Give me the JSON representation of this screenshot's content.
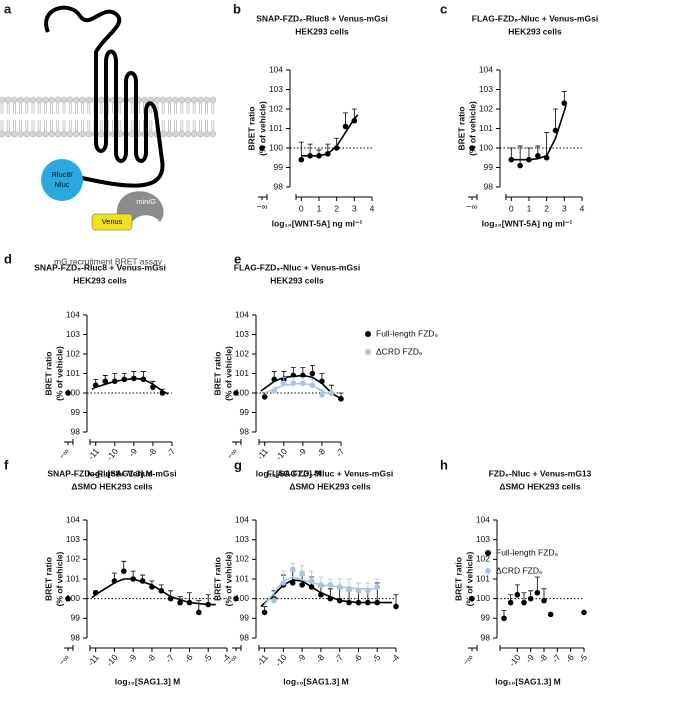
{
  "schematic": {
    "panel_label": "a",
    "luciferase_label_1": "Rluc8/",
    "luciferase_label_2": "Nluc",
    "venus_label": "Venus",
    "minig_label": "miniG",
    "caption": "mG recruitment BRET assay"
  },
  "chart_data": [
    {
      "type": "scatter",
      "panel_label": "b",
      "title": "SNAP-FZD₆-Rluc8 + Venus-mGsi",
      "subtitle": "HEK293 cells",
      "ylabel": "BRET ratio",
      "ylabel2": "(% of vehicle)",
      "xlabel": "log₁₀[WNT-5A] ng ml⁻¹",
      "x_break_label": "−∞",
      "xlim": [
        -0.3,
        4
      ],
      "xticks": [
        0,
        1,
        2,
        3,
        4
      ],
      "ylim": [
        98,
        104
      ],
      "yticks": [
        98,
        99,
        100,
        101,
        102,
        103,
        104
      ],
      "reference_line": 100,
      "vehicle_value": 100,
      "series": [
        {
          "color": "#000000",
          "x": [
            0,
            0.5,
            1,
            1.5,
            2,
            2.5,
            3
          ],
          "values": [
            99.4,
            99.6,
            99.6,
            99.7,
            100.0,
            101.1,
            101.4
          ],
          "errors": [
            0.9,
            0.6,
            0.3,
            0.5,
            0.5,
            0.7,
            0.6
          ],
          "fit": {
            "x": [
              0,
              1,
              1.5,
              2,
              2.5,
              3,
              3.2
            ],
            "values": [
              99.6,
              99.6,
              99.7,
              100.1,
              100.8,
              101.5,
              101.7
            ]
          }
        }
      ]
    },
    {
      "type": "scatter",
      "panel_label": "c",
      "title": "FLAG-FZD₆-Nluc + Venus-mGsi",
      "subtitle": "HEK293 cells",
      "ylabel": "BRET ratio",
      "ylabel2": "(% of vehicle)",
      "xlabel": "log₁₀[WNT-5A] ng ml⁻¹",
      "x_break_label": "−∞",
      "xlim": [
        -0.3,
        4
      ],
      "xticks": [
        0,
        1,
        2,
        3,
        4
      ],
      "ylim": [
        98,
        104
      ],
      "yticks": [
        98,
        99,
        100,
        101,
        102,
        103,
        104
      ],
      "reference_line": 100,
      "vehicle_value": 100,
      "series": [
        {
          "color": "#000000",
          "x": [
            0,
            0.5,
            1,
            1.5,
            2,
            2.5,
            3
          ],
          "values": [
            99.4,
            99.1,
            99.4,
            99.6,
            99.5,
            100.9,
            102.3
          ],
          "errors": [
            0.6,
            1.0,
            0.6,
            0.5,
            1.3,
            1.1,
            0.6
          ],
          "fit": {
            "x": [
              0,
              1,
              1.5,
              2,
              2.5,
              3,
              3.1
            ],
            "values": [
              99.4,
              99.4,
              99.45,
              99.6,
              100.5,
              101.9,
              102.2
            ]
          }
        }
      ]
    },
    {
      "type": "scatter",
      "panel_label": "d",
      "title": "SNAP-FZD₆-Rluc8 + Venus-mGsi",
      "subtitle": "HEK293 cells",
      "ylabel": "BRET ratio",
      "ylabel2": "(% of vehicle)",
      "xlabel": "log₁₀[SAG1.3] M",
      "x_break_label": "−∞",
      "xlim": [
        -11.3,
        -7
      ],
      "xticks": [
        -11,
        -10,
        -9,
        -8,
        -7
      ],
      "ylim": [
        98,
        104
      ],
      "yticks": [
        98,
        99,
        100,
        101,
        102,
        103,
        104
      ],
      "reference_line": 100,
      "vehicle_value": 100,
      "series": [
        {
          "color": "#000000",
          "x": [
            -11,
            -10.5,
            -10,
            -9.5,
            -9,
            -8.5,
            -8,
            -7.5
          ],
          "values": [
            100.4,
            100.6,
            100.6,
            100.7,
            100.75,
            100.7,
            100.3,
            100.0
          ],
          "errors": [
            0.3,
            0.3,
            0.4,
            0.3,
            0.35,
            0.4,
            0.3,
            0.2
          ],
          "fit": {
            "x": [
              -11.2,
              -11,
              -10,
              -9,
              -8.5,
              -8,
              -7.5,
              -7.2
            ],
            "values": [
              100.2,
              100.3,
              100.6,
              100.75,
              100.7,
              100.45,
              100.1,
              99.95
            ]
          }
        }
      ]
    },
    {
      "type": "scatter",
      "panel_label": "e",
      "title": "FLAG-FZD₆-Nluc + Venus-mGsi",
      "subtitle": "HEK293 cells",
      "ylabel": "BRET ratio",
      "ylabel2": "(% of vehicle)",
      "xlabel": "log₁₀[SAG1.3] M",
      "x_break_label": "−∞",
      "xlim": [
        -11.3,
        -7
      ],
      "xticks": [
        -11,
        -10,
        -9,
        -8,
        -7
      ],
      "ylim": [
        98,
        104
      ],
      "yticks": [
        98,
        99,
        100,
        101,
        102,
        103,
        104
      ],
      "reference_line": 100,
      "vehicle_value": 100,
      "series": [
        {
          "name": "Full-length FZD₆",
          "color": "#000000",
          "x": [
            -11,
            -10.5,
            -10,
            -9.5,
            -9,
            -8.5,
            -8,
            -7.5,
            -7
          ],
          "values": [
            99.8,
            100.7,
            100.7,
            100.9,
            100.9,
            101.0,
            100.6,
            100.0,
            99.7
          ],
          "errors": [
            0.2,
            0.4,
            0.4,
            0.4,
            0.4,
            0.4,
            0.4,
            0.4,
            0.3
          ],
          "fit": {
            "x": [
              -11.2,
              -10.5,
              -10,
              -9,
              -8.5,
              -8,
              -7.5,
              -7
            ],
            "values": [
              100.1,
              100.6,
              100.8,
              100.9,
              100.8,
              100.5,
              100.0,
              99.7
            ]
          }
        },
        {
          "name": "ΔCRD FZD₆",
          "color": "#a9c4e4",
          "x": [
            -10.5,
            -10,
            -9.5,
            -9,
            -8.5,
            -8,
            -7.5
          ],
          "values": [
            100.1,
            100.5,
            100.5,
            100.5,
            100.4,
            99.9,
            100.0
          ],
          "errors": [
            0.2,
            0.3,
            0.3,
            0.3,
            0.3,
            0.3,
            0.2
          ],
          "fit": {
            "x": [
              -11,
              -10,
              -9,
              -8.5,
              -8,
              -7.5
            ],
            "values": [
              100.0,
              100.4,
              100.5,
              100.4,
              100.1,
              99.9
            ]
          }
        }
      ]
    },
    {
      "type": "scatter",
      "panel_label": "f",
      "title": "SNAP-FZD₆-Rluc8+ Venus-mGsi",
      "subtitle": "ΔSMO HEK293 cells",
      "ylabel": "BRET ratio",
      "ylabel2": "(% of vehicle)",
      "xlabel": "log₁₀[SAG1.3] M",
      "x_break_label": "−∞",
      "xlim": [
        -11.3,
        -4
      ],
      "xticks": [
        -11,
        -10,
        -9,
        -8,
        -7,
        -6,
        -5,
        -4
      ],
      "ylim": [
        98,
        104
      ],
      "yticks": [
        98,
        99,
        100,
        101,
        102,
        103,
        104
      ],
      "reference_line": 100,
      "vehicle_value": 100,
      "series": [
        {
          "color": "#000000",
          "x": [
            -11,
            -10,
            -9.5,
            -9,
            -8.5,
            -8,
            -7.5,
            -7,
            -6.5,
            -6,
            -5.5,
            -5
          ],
          "values": [
            100.3,
            100.9,
            101.4,
            101.0,
            100.9,
            100.6,
            100.4,
            100.0,
            99.8,
            99.8,
            99.3,
            99.7
          ],
          "errors": [
            0.1,
            0.4,
            0.5,
            0.4,
            0.3,
            0.3,
            0.3,
            0.4,
            0.3,
            0.5,
            0.6,
            0.5
          ],
          "fit": {
            "x": [
              -11.2,
              -11,
              -10,
              -9.5,
              -9,
              -8,
              -7,
              -6,
              -5,
              -4.6
            ],
            "values": [
              100.05,
              100.2,
              100.8,
              101.0,
              101.0,
              100.7,
              100.1,
              99.8,
              99.7,
              99.7
            ]
          }
        }
      ]
    },
    {
      "type": "scatter",
      "panel_label": "g",
      "title": "FLAG-FZD₆-Nluc + Venus-mGsi",
      "subtitle": "ΔSMO HEK293 cells",
      "ylabel": "BRET ratio",
      "ylabel2": "(% of vehicle)",
      "xlabel": "log₁₀[SAG1.3] M",
      "x_break_label": "−∞",
      "xlim": [
        -11.3,
        -4
      ],
      "xticks": [
        -11,
        -10,
        -9,
        -8,
        -7,
        -6,
        -5,
        -4
      ],
      "ylim": [
        98,
        104
      ],
      "yticks": [
        98,
        99,
        100,
        101,
        102,
        103,
        104
      ],
      "reference_line": 100,
      "vehicle_value": 100,
      "series": [
        {
          "name": "Full-length FZD₆",
          "color": "#000000",
          "x": [
            -11,
            -10.5,
            -10,
            -9.5,
            -9,
            -8.5,
            -8,
            -7.5,
            -7,
            -6.5,
            -6,
            -5.5,
            -5,
            -4
          ],
          "values": [
            99.3,
            100.0,
            100.7,
            100.8,
            100.7,
            100.6,
            100.2,
            100.0,
            99.9,
            99.8,
            99.8,
            99.8,
            99.8,
            99.6
          ],
          "errors": [
            0.3,
            0.4,
            0.5,
            0.6,
            0.5,
            0.5,
            0.4,
            0.5,
            0.6,
            0.6,
            0.7,
            0.7,
            1.0,
            0.6
          ],
          "fit": {
            "x": [
              -11.2,
              -10.5,
              -10,
              -9.5,
              -9,
              -8.5,
              -8,
              -7,
              -6,
              -5,
              -4.2
            ],
            "values": [
              99.6,
              100.2,
              100.7,
              100.95,
              100.9,
              100.6,
              100.3,
              99.9,
              99.8,
              99.8,
              99.8
            ]
          }
        },
        {
          "name": "ΔCRD FZD₆",
          "color": "#a9c4e4",
          "x": [
            -10.5,
            -10,
            -9.5,
            -9,
            -8.5,
            -8,
            -7.5,
            -7,
            -6.5,
            -6,
            -5.5,
            -5
          ],
          "values": [
            99.9,
            100.8,
            101.5,
            101.3,
            100.9,
            100.7,
            100.7,
            100.6,
            100.5,
            100.4,
            100.4,
            100.6
          ],
          "errors": [
            0.3,
            0.6,
            0.3,
            0.4,
            0.5,
            0.4,
            0.3,
            0.4,
            0.5,
            0.4,
            0.4,
            0.4
          ],
          "fit": {
            "x": [
              -11,
              -10.5,
              -10,
              -9.5,
              -9,
              -8,
              -7,
              -6,
              -5
            ],
            "values": [
              99.7,
              100.3,
              100.9,
              101.1,
              100.95,
              100.7,
              100.6,
              100.5,
              100.5
            ]
          }
        }
      ]
    },
    {
      "type": "scatter",
      "panel_label": "h",
      "title": "FZD₆-Nluc + Venus-mG13",
      "subtitle": "ΔSMO HEK293 cells",
      "ylabel": "BRET ratio",
      "ylabel2": "(% of vehicle)",
      "xlabel": "log₁₀[SAG1.3] M",
      "x_break_label": "−∞",
      "xlim": [
        -11.3,
        -5
      ],
      "xticks": [
        -10,
        -9,
        -8,
        -7,
        -6,
        -5
      ],
      "ylim": [
        98,
        104
      ],
      "yticks": [
        98,
        99,
        100,
        101,
        102,
        103,
        104
      ],
      "reference_line": 100,
      "vehicle_value": 100,
      "series": [
        {
          "color": "#000000",
          "x": [
            -11,
            -10.5,
            -10,
            -9.5,
            -9,
            -8.5,
            -8,
            -7.5,
            -5
          ],
          "values": [
            99.0,
            99.8,
            100.2,
            99.8,
            100.0,
            100.3,
            99.9,
            99.2,
            99.3
          ],
          "errors": [
            0.4,
            0.4,
            0.5,
            0.5,
            0.4,
            0.8,
            0.6,
            0,
            0
          ]
        }
      ]
    }
  ]
}
